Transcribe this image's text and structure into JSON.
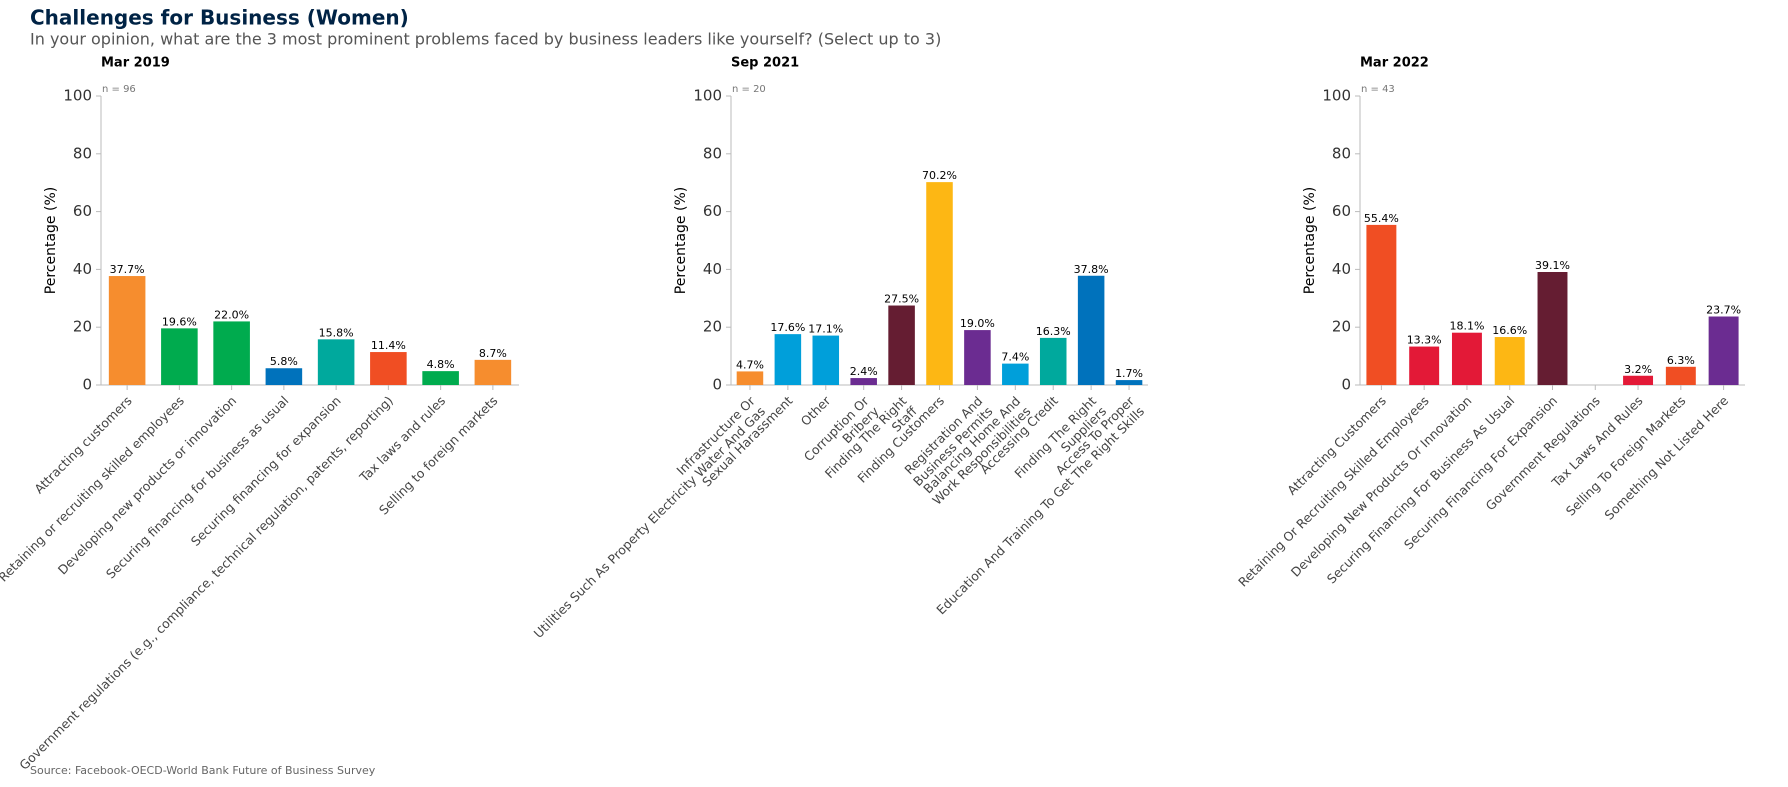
{
  "title": "Challenges for Business (Women)",
  "subtitle": "In your opinion, what are the 3 most prominent problems faced by business leaders like yourself? (Select up to 3)",
  "source": "Source: Facebook-OECD-World Bank Future of Business Survey",
  "chart_data": [
    {
      "type": "bar",
      "title": "Mar 2019",
      "note": "n = 96",
      "y_label": "Percentage (%)",
      "categories": [
        "Attracting customers",
        "Retaining or recruiting skilled employees",
        "Developing new products or innovation",
        "Securing financing for business as usual",
        "Securing financing for expansion",
        "Government regulations (e.g., compliance, technical regulation, patents, reporting)",
        "Tax laws and rules",
        "Selling to foreign markets"
      ],
      "values": [
        37.7,
        19.6,
        22.0,
        5.8,
        15.8,
        11.4,
        4.8,
        8.7
      ],
      "value_labels": [
        "37.7%",
        "19.6%",
        "22.0%",
        "5.8%",
        "15.8%",
        "11.4%",
        "4.8%",
        "8.7%"
      ],
      "colors": [
        "#f68d2e",
        "#00ab4e",
        "#00ab4e",
        "#0072bc",
        "#00a99d",
        "#f04e23",
        "#00ab4e",
        "#f68d2e"
      ],
      "ylim": [
        0,
        100
      ],
      "yticks": [
        0,
        20,
        40,
        60,
        80,
        100
      ]
    },
    {
      "type": "bar",
      "title": "Sep 2021",
      "note": "n = 20",
      "y_label": "Percentage (%)",
      "categories": [
        "Infrastructure Or\nUtilities Such As Property Electricity Water And Gas",
        "Sexual Harassment",
        "Other",
        "Corruption Or\nBribery",
        "Finding The Right\nStaff",
        "Finding Customers",
        "Registration And\nBusiness Permits",
        "Balancing Home And\nWork Responsibilities",
        "Accessing Credit",
        "Finding The Right\nSuppliers",
        "Access To Proper\nEducation And Training To Get The Right Skills"
      ],
      "values": [
        4.7,
        17.6,
        17.1,
        2.4,
        27.5,
        70.2,
        19.0,
        7.4,
        16.3,
        37.8,
        1.7
      ],
      "value_labels": [
        "4.7%",
        "17.6%",
        "17.1%",
        "2.4%",
        "27.5%",
        "70.2%",
        "19.0%",
        "7.4%",
        "16.3%",
        "37.8%",
        "1.7%"
      ],
      "colors": [
        "#f68d2e",
        "#009fda",
        "#009fda",
        "#6b2c91",
        "#651d32",
        "#fdb714",
        "#6b2c91",
        "#009fda",
        "#00a99d",
        "#0072bc",
        "#0072bc"
      ],
      "ylim": [
        0,
        100
      ],
      "yticks": [
        0,
        20,
        40,
        60,
        80,
        100
      ]
    },
    {
      "type": "bar",
      "title": "Mar 2022",
      "note": "n = 43",
      "y_label": "Percentage (%)",
      "categories": [
        "Attracting Customers",
        "Retaining Or Recruiting Skilled Employees",
        "Developing New Products Or Innovation",
        "Securing Financing For Business As Usual",
        "Securing Financing For Expansion",
        "Government Regulations",
        "Tax Laws And Rules",
        "Selling To Foreign Markets",
        "Something Not Listed Here"
      ],
      "values": [
        55.4,
        13.3,
        18.1,
        16.6,
        39.1,
        null,
        3.2,
        6.3,
        23.7
      ],
      "value_labels": [
        "55.4%",
        "13.3%",
        "18.1%",
        "16.6%",
        "39.1%",
        null,
        "3.2%",
        "6.3%",
        "23.7%"
      ],
      "colors": [
        "#f04e23",
        "#e31937",
        "#e31937",
        "#fdb714",
        "#651d32",
        null,
        "#e31937",
        "#f04e23",
        "#6b2c91"
      ],
      "ylim": [
        0,
        100
      ],
      "yticks": [
        0,
        20,
        40,
        60,
        80,
        100
      ]
    }
  ]
}
